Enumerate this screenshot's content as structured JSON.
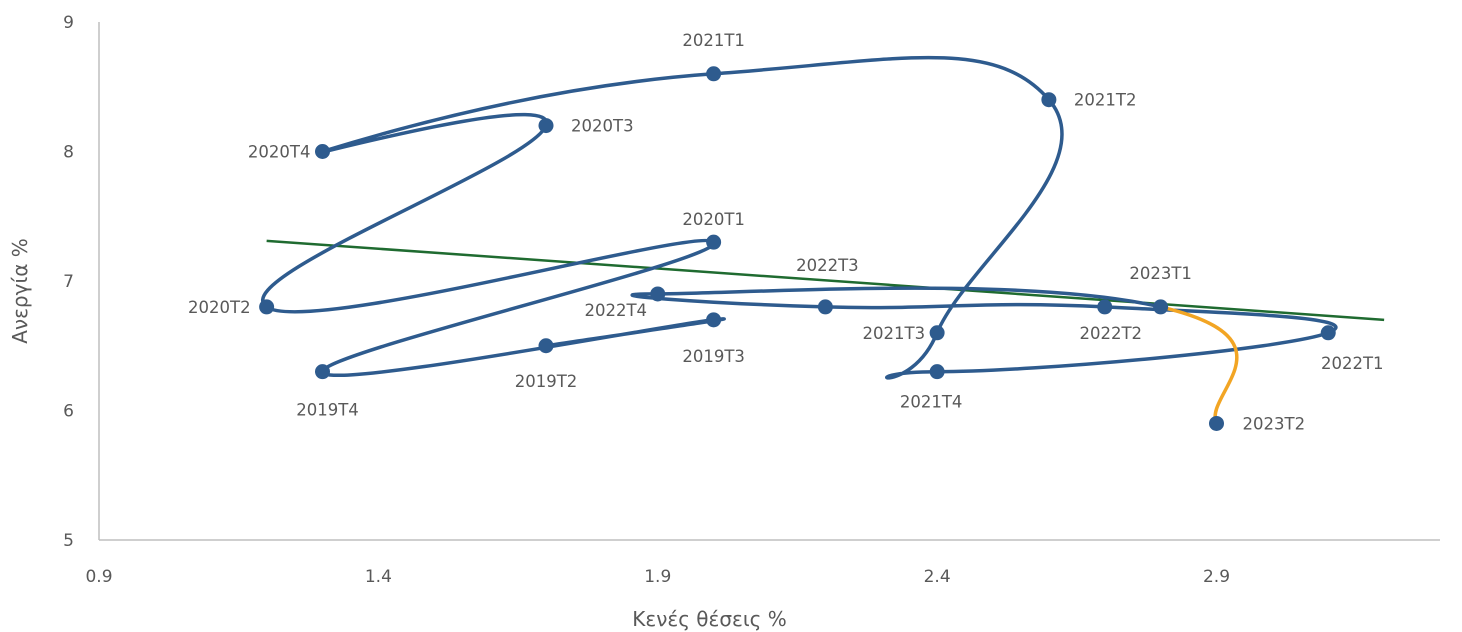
{
  "chart_data": {
    "type": "scatter",
    "title": "",
    "xlabel": "Κενές θέσεις  %",
    "ylabel": "Ανεργία  %",
    "xlim": [
      0.9,
      3.3
    ],
    "ylim": [
      5,
      9
    ],
    "xticks": [
      "0.9",
      "1.4",
      "1.9",
      "2.4",
      "2.9"
    ],
    "xtick_values": [
      0.9,
      1.4,
      1.9,
      2.4,
      2.9
    ],
    "yticks": [
      "5",
      "6",
      "7",
      "8",
      "9"
    ],
    "ytick_values": [
      5,
      6,
      7,
      8,
      9
    ],
    "grid": false,
    "legend": "none",
    "colors": {
      "path": "#2E5B8E",
      "latest_segment": "#F2A524",
      "trendline": "#1F6B30",
      "axis": "#BFBFBF"
    },
    "series": [
      {
        "points": [
          {
            "label": "2019T2",
            "x": 1.7,
            "y": 6.5
          },
          {
            "label": "2019T3",
            "x": 2.0,
            "y": 6.7
          },
          {
            "label": "2019T4",
            "x": 1.3,
            "y": 6.3
          },
          {
            "label": "2020T1",
            "x": 2.0,
            "y": 7.3
          },
          {
            "label": "2020T2",
            "x": 1.2,
            "y": 6.8
          },
          {
            "label": "2020T3",
            "x": 1.7,
            "y": 8.2
          },
          {
            "label": "2020T4",
            "x": 1.3,
            "y": 8.0
          },
          {
            "label": "2021T1",
            "x": 2.0,
            "y": 8.6
          },
          {
            "label": "2021T2",
            "x": 2.6,
            "y": 8.4
          },
          {
            "label": "2021T3",
            "x": 2.4,
            "y": 6.6
          },
          {
            "label": "2021T4",
            "x": 2.4,
            "y": 6.3
          },
          {
            "label": "2022T1",
            "x": 3.1,
            "y": 6.6
          },
          {
            "label": "2022T2",
            "x": 2.7,
            "y": 6.8
          },
          {
            "label": "2022T3",
            "x": 2.2,
            "y": 6.8
          },
          {
            "label": "2022T4",
            "x": 1.9,
            "y": 6.9
          },
          {
            "label": "2023T1",
            "x": 2.8,
            "y": 6.8
          },
          {
            "label": "2023T2",
            "x": 2.9,
            "y": 5.9
          }
        ]
      }
    ],
    "trendline": {
      "x": [
        1.2,
        3.2
      ],
      "y": [
        7.31,
        6.7
      ]
    }
  }
}
